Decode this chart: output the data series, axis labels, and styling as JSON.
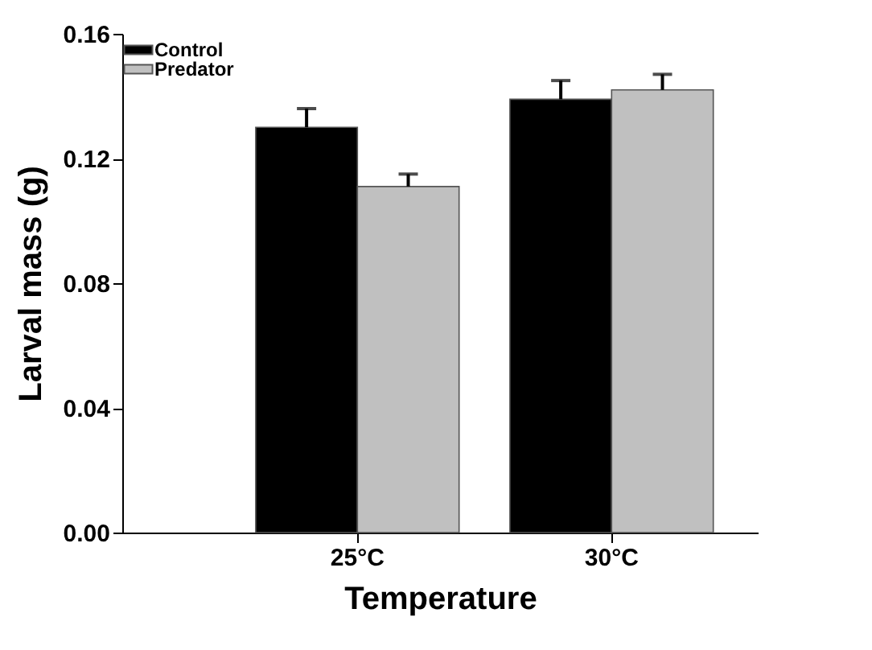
{
  "chart_data": {
    "type": "bar",
    "xlabel": "Temperature",
    "ylabel": "Larval mass (g)",
    "categories": [
      "25°C",
      "30°C"
    ],
    "series": [
      {
        "name": "Control",
        "color": "#000000",
        "values": [
          0.13,
          0.139
        ],
        "errors": [
          [
            0.13,
            0.136
          ],
          [
            0.139,
            0.145
          ]
        ]
      },
      {
        "name": "Predator",
        "color": "#c0c0c0",
        "values": [
          0.111,
          0.142
        ],
        "errors": [
          [
            0.111,
            0.115
          ],
          [
            0.142,
            0.147
          ]
        ]
      }
    ],
    "ylim": [
      0,
      0.16
    ],
    "yticks": [
      {
        "value": 0,
        "label": "0.00"
      },
      {
        "value": 0.04,
        "label": "0.04"
      },
      {
        "value": 0.08,
        "label": "0.08"
      },
      {
        "value": 0.12,
        "label": "0.12"
      },
      {
        "value": 0.16,
        "label": "0.16"
      }
    ],
    "grid": false,
    "legend": "top left"
  }
}
